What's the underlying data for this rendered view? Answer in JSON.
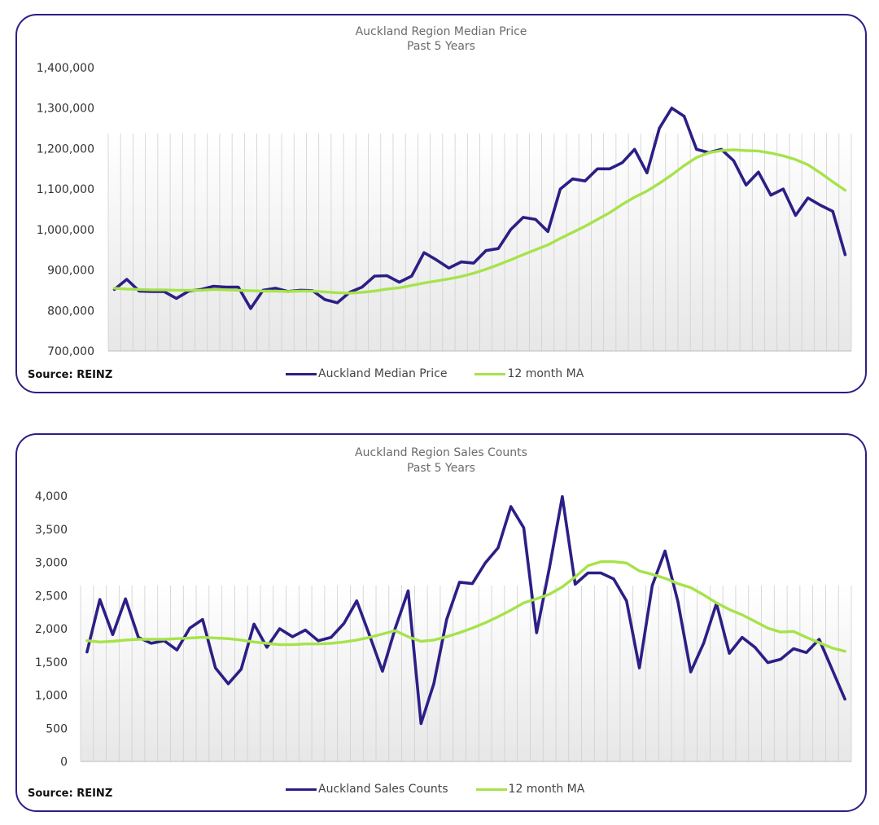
{
  "charts": [
    {
      "id": "price",
      "title": "Auckland Region Median Price",
      "subtitle": "Past 5 Years",
      "source": "Source: REINZ",
      "legend": [
        {
          "label": "Auckland Median Price",
          "color": "#2b1f86"
        },
        {
          "label": "12 month MA",
          "color": "#a6e34a"
        }
      ]
    },
    {
      "id": "sales",
      "title": "Auckland Region Sales Counts",
      "subtitle": "Past 5 Years",
      "source": "Source: REINZ",
      "legend": [
        {
          "label": "Auckland Sales Counts",
          "color": "#2b1f86"
        },
        {
          "label": "12 month MA",
          "color": "#a6e34a"
        }
      ]
    }
  ],
  "chart_data": [
    {
      "type": "line",
      "title": "Auckland Region Median Price",
      "subtitle": "Past 5 Years",
      "xlabel": "",
      "ylabel": "",
      "ylim": [
        700000,
        1400000
      ],
      "yticks": [
        700000,
        800000,
        900000,
        1000000,
        1100000,
        1200000,
        1300000,
        1400000
      ],
      "ytick_labels": [
        "700,000",
        "800,000",
        "900,000",
        "1,000,000",
        "1,100,000",
        "1,200,000",
        "1,300,000",
        "1,400,000"
      ],
      "grid": "vertical",
      "series": [
        {
          "name": "Auckland Median Price",
          "color": "#2b1f86",
          "values": [
            852000,
            877000,
            848000,
            847000,
            847000,
            830000,
            848000,
            852000,
            860000,
            858000,
            858000,
            805000,
            850000,
            855000,
            847000,
            850000,
            849000,
            827000,
            819000,
            845000,
            858000,
            885000,
            886000,
            870000,
            885000,
            943000,
            925000,
            905000,
            920000,
            917000,
            948000,
            953000,
            1000000,
            1030000,
            1025000,
            995000,
            1100000,
            1125000,
            1120000,
            1150000,
            1150000,
            1165000,
            1198000,
            1140000,
            1250000,
            1300000,
            1280000,
            1198000,
            1190000,
            1198000,
            1170000,
            1110000,
            1142000,
            1085000,
            1100000,
            1035000,
            1078000,
            1060000,
            1045000,
            938000
          ]
        },
        {
          "name": "12 month MA",
          "color": "#a6e34a",
          "values": [
            855000,
            853000,
            852000,
            851000,
            851000,
            850000,
            850000,
            850000,
            852000,
            851000,
            850000,
            849000,
            848000,
            848000,
            847000,
            848000,
            848000,
            846000,
            844000,
            843000,
            845000,
            848000,
            853000,
            856000,
            862000,
            868000,
            873000,
            878000,
            884000,
            892000,
            902000,
            913000,
            925000,
            938000,
            950000,
            962000,
            978000,
            993000,
            1008000,
            1025000,
            1042000,
            1062000,
            1080000,
            1095000,
            1114000,
            1135000,
            1158000,
            1178000,
            1190000,
            1195000,
            1197000,
            1195000,
            1194000,
            1189000,
            1182000,
            1173000,
            1160000,
            1140000,
            1118000,
            1097000
          ]
        }
      ]
    },
    {
      "type": "line",
      "title": "Auckland Region Sales Counts",
      "subtitle": "Past 5 Years",
      "xlabel": "",
      "ylabel": "",
      "ylim": [
        0,
        4000
      ],
      "yticks": [
        0,
        500,
        1000,
        1500,
        2000,
        2500,
        3000,
        3500,
        4000
      ],
      "ytick_labels": [
        "0",
        "500",
        "1,000",
        "1,500",
        "2,000",
        "2,500",
        "3,000",
        "3,500",
        "4,000"
      ],
      "grid": "vertical",
      "series": [
        {
          "name": "Auckland Sales Counts",
          "color": "#2b1f86",
          "values": [
            1650,
            2440,
            1910,
            2450,
            1870,
            1780,
            1820,
            1680,
            2010,
            2140,
            1410,
            1170,
            1390,
            2070,
            1720,
            2000,
            1880,
            1980,
            1820,
            1870,
            2080,
            2420,
            1900,
            1360,
            2010,
            2570,
            570,
            1170,
            2140,
            2700,
            2680,
            2990,
            3220,
            3840,
            3520,
            1940,
            2920,
            3990,
            2670,
            2840,
            2840,
            2750,
            2420,
            1410,
            2650,
            3170,
            2410,
            1350,
            1780,
            2380,
            1630,
            1870,
            1720,
            1490,
            1540,
            1700,
            1640,
            1840,
            1390,
            940
          ]
        },
        {
          "name": "12 month MA",
          "color": "#a6e34a",
          "values": [
            1820,
            1800,
            1810,
            1830,
            1840,
            1840,
            1840,
            1850,
            1860,
            1870,
            1860,
            1850,
            1830,
            1800,
            1780,
            1760,
            1760,
            1770,
            1770,
            1780,
            1800,
            1830,
            1870,
            1920,
            1970,
            1880,
            1810,
            1830,
            1880,
            1940,
            2010,
            2090,
            2180,
            2280,
            2390,
            2450,
            2520,
            2630,
            2780,
            2950,
            3010,
            3010,
            2990,
            2870,
            2820,
            2760,
            2680,
            2620,
            2510,
            2390,
            2290,
            2210,
            2110,
            2010,
            1950,
            1960,
            1870,
            1790,
            1710,
            1660
          ]
        }
      ]
    }
  ]
}
